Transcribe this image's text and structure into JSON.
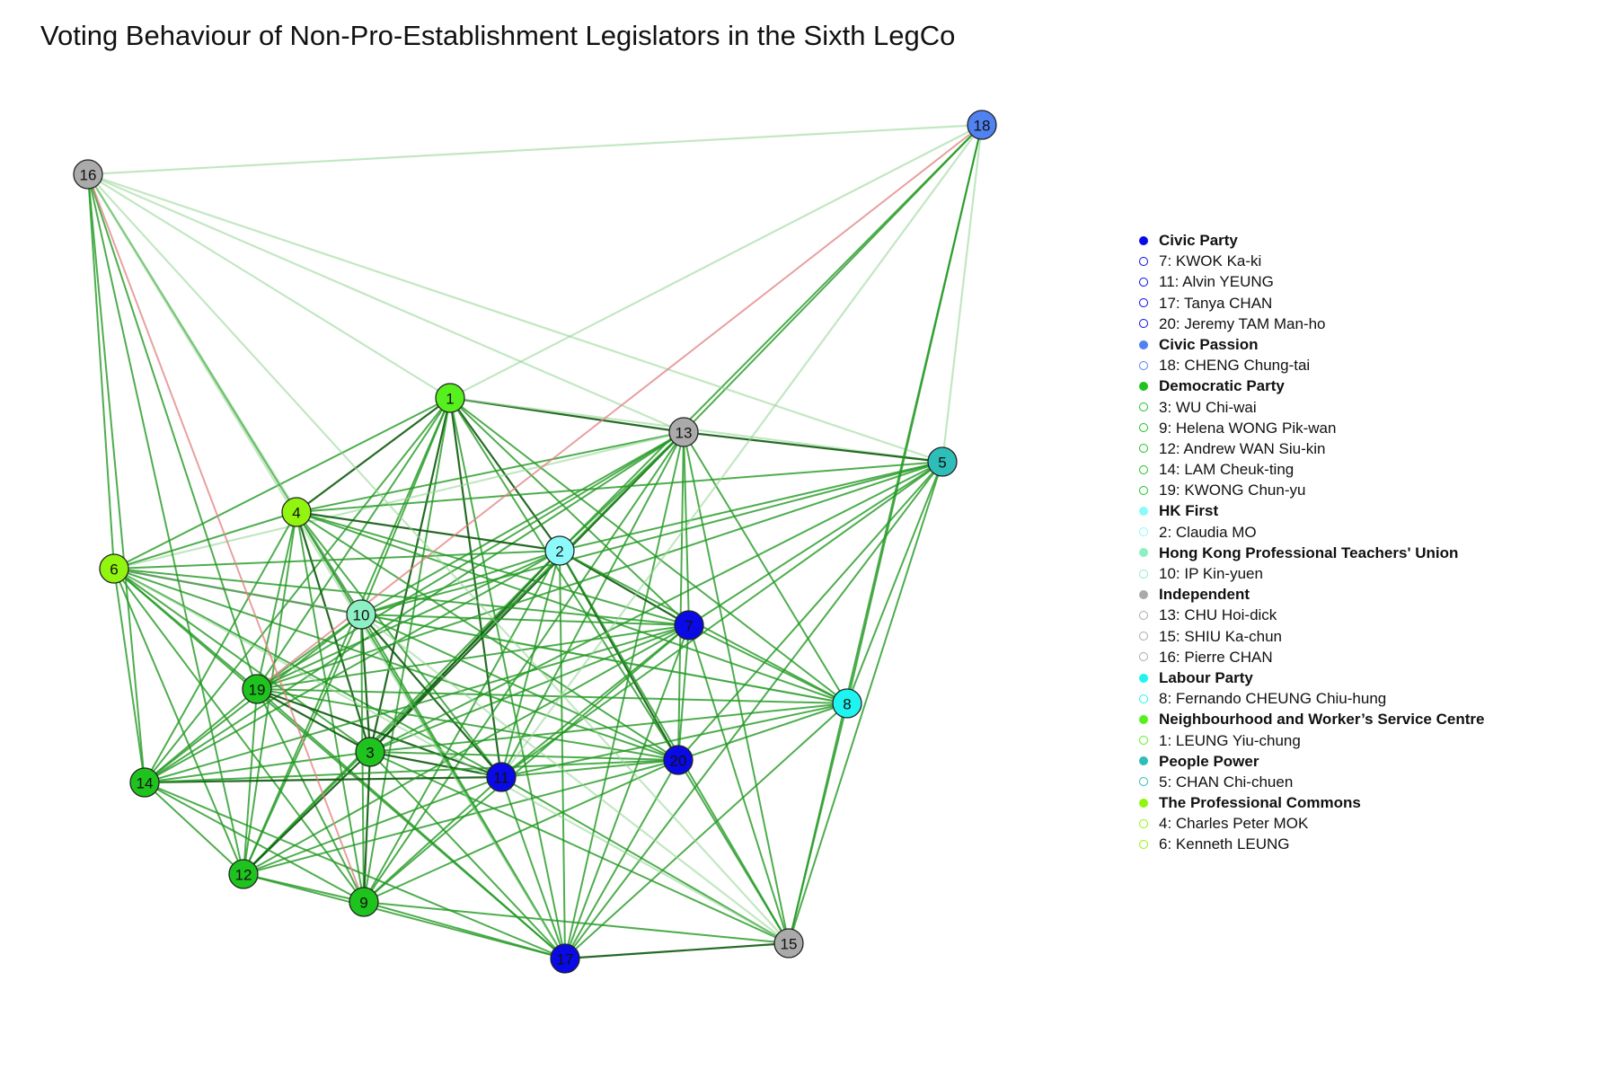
{
  "title": "Voting Behaviour of Non-Pro-Establishment Legislators in the Sixth LegCo",
  "parties": [
    {
      "name": "Civic Party",
      "color": "#0a0ae6",
      "members": [
        "7: KWOK Ka-ki",
        "11: Alvin YEUNG",
        "17: Tanya CHAN",
        "20: Jeremy TAM Man-ho"
      ]
    },
    {
      "name": "Civic Passion",
      "color": "#5082f0",
      "members": [
        "18: CHENG Chung-tai"
      ]
    },
    {
      "name": "Democratic Party",
      "color": "#1ec31e",
      "members": [
        "3: WU Chi-wai",
        "9: Helena WONG Pik-wan",
        "12: Andrew WAN Siu-kin",
        "14: LAM Cheuk-ting",
        "19: KWONG Chun-yu"
      ]
    },
    {
      "name": "HK First",
      "color": "#8cfafa",
      "members": [
        "2: Claudia MO"
      ]
    },
    {
      "name": "Hong Kong Professional Teachers' Union",
      "color": "#8cf0c3",
      "members": [
        "10: IP Kin-yuen"
      ]
    },
    {
      "name": "Independent",
      "color": "#aaaaaa",
      "members": [
        "13: CHU Hoi-dick",
        "15: SHIU Ka-chun",
        "16: Pierre CHAN"
      ]
    },
    {
      "name": "Labour Party",
      "color": "#1ef5f0",
      "members": [
        "8: Fernando CHEUNG Chiu-hung"
      ]
    },
    {
      "name": "Neighbourhood and Worker’s Service Centre",
      "color": "#55f01e",
      "members": [
        "1: LEUNG Yiu-chung"
      ]
    },
    {
      "name": "People Power",
      "color": "#2ebdb8",
      "members": [
        "5: CHAN Chi-chuen"
      ]
    },
    {
      "name": "The Professional Commons",
      "color": "#91f50f",
      "members": [
        "4: Charles Peter MOK",
        "6: Kenneth LEUNG"
      ]
    }
  ],
  "nodes": [
    {
      "id": "1",
      "party": "Neighbourhood and Worker’s Service Centre",
      "color": "#55f01e"
    },
    {
      "id": "2",
      "party": "HK First",
      "color": "#8cfafa"
    },
    {
      "id": "3",
      "party": "Democratic Party",
      "color": "#1ec31e"
    },
    {
      "id": "4",
      "party": "The Professional Commons",
      "color": "#91f50f"
    },
    {
      "id": "5",
      "party": "People Power",
      "color": "#2ebdb8"
    },
    {
      "id": "6",
      "party": "The Professional Commons",
      "color": "#91f50f"
    },
    {
      "id": "7",
      "party": "Civic Party",
      "color": "#0a0ae6"
    },
    {
      "id": "8",
      "party": "Labour Party",
      "color": "#1ef5f0"
    },
    {
      "id": "9",
      "party": "Democratic Party",
      "color": "#1ec31e"
    },
    {
      "id": "10",
      "party": "Hong Kong Professional Teachers' Union",
      "color": "#8cf0c3"
    },
    {
      "id": "11",
      "party": "Civic Party",
      "color": "#0a0ae6"
    },
    {
      "id": "12",
      "party": "Democratic Party",
      "color": "#1ec31e"
    },
    {
      "id": "13",
      "party": "Independent",
      "color": "#aaaaaa"
    },
    {
      "id": "14",
      "party": "Democratic Party",
      "color": "#1ec31e"
    },
    {
      "id": "15",
      "party": "Independent",
      "color": "#aaaaaa"
    },
    {
      "id": "16",
      "party": "Independent",
      "color": "#aaaaaa"
    },
    {
      "id": "17",
      "party": "Civic Party",
      "color": "#0a0ae6"
    },
    {
      "id": "18",
      "party": "Civic Passion",
      "color": "#5082f0"
    },
    {
      "id": "19",
      "party": "Democratic Party",
      "color": "#1ec31e"
    },
    {
      "id": "20",
      "party": "Civic Party",
      "color": "#0a0ae6"
    }
  ],
  "edge_colors": {
    "agree_strong": "#0e5a0e",
    "agree": "#229922",
    "agree_weak": "#8fd48f",
    "disagree": "#e08080"
  },
  "edges": [
    [
      "1",
      "13",
      1
    ],
    [
      "1",
      "4",
      1
    ],
    [
      "1",
      "10",
      2
    ],
    [
      "1",
      "3",
      1
    ],
    [
      "1",
      "11",
      1
    ],
    [
      "1",
      "2",
      1
    ],
    [
      "1",
      "7",
      2
    ],
    [
      "1",
      "19",
      2
    ],
    [
      "1",
      "9",
      2
    ],
    [
      "1",
      "17",
      2
    ],
    [
      "1",
      "20",
      2
    ],
    [
      "1",
      "6",
      2
    ],
    [
      "1",
      "14",
      2
    ],
    [
      "1",
      "12",
      2
    ],
    [
      "1",
      "8",
      2
    ],
    [
      "1",
      "18",
      3
    ],
    [
      "1",
      "16",
      3
    ],
    [
      "1",
      "5",
      3
    ],
    [
      "13",
      "5",
      1
    ],
    [
      "13",
      "2",
      2
    ],
    [
      "13",
      "3",
      1
    ],
    [
      "13",
      "11",
      2
    ],
    [
      "13",
      "7",
      2
    ],
    [
      "13",
      "20",
      2
    ],
    [
      "13",
      "17",
      2
    ],
    [
      "13",
      "9",
      2
    ],
    [
      "13",
      "12",
      2
    ],
    [
      "13",
      "14",
      2
    ],
    [
      "13",
      "19",
      2
    ],
    [
      "13",
      "10",
      2
    ],
    [
      "13",
      "4",
      2
    ],
    [
      "13",
      "8",
      2
    ],
    [
      "13",
      "15",
      2
    ],
    [
      "13",
      "18",
      2
    ],
    [
      "13",
      "6",
      3
    ],
    [
      "13",
      "16",
      3
    ],
    [
      "4",
      "6",
      2
    ],
    [
      "4",
      "2",
      1
    ],
    [
      "4",
      "10",
      1
    ],
    [
      "4",
      "3",
      1
    ],
    [
      "4",
      "19",
      2
    ],
    [
      "4",
      "12",
      2
    ],
    [
      "4",
      "9",
      2
    ],
    [
      "4",
      "11",
      2
    ],
    [
      "4",
      "7",
      2
    ],
    [
      "4",
      "14",
      2
    ],
    [
      "4",
      "17",
      2
    ],
    [
      "4",
      "20",
      2
    ],
    [
      "4",
      "5",
      2
    ],
    [
      "4",
      "8",
      2
    ],
    [
      "4",
      "16",
      2
    ],
    [
      "6",
      "10",
      1
    ],
    [
      "6",
      "19",
      2
    ],
    [
      "6",
      "14",
      2
    ],
    [
      "6",
      "12",
      2
    ],
    [
      "6",
      "3",
      2
    ],
    [
      "6",
      "9",
      2
    ],
    [
      "6",
      "11",
      2
    ],
    [
      "6",
      "7",
      2
    ],
    [
      "6",
      "2",
      2
    ],
    [
      "6",
      "20",
      2
    ],
    [
      "6",
      "17",
      2
    ],
    [
      "6",
      "16",
      2
    ],
    [
      "6",
      "8",
      3
    ],
    [
      "2",
      "7",
      1
    ],
    [
      "2",
      "20",
      1
    ],
    [
      "2",
      "3",
      1
    ],
    [
      "2",
      "11",
      2
    ],
    [
      "2",
      "10",
      2
    ],
    [
      "2",
      "19",
      2
    ],
    [
      "2",
      "14",
      2
    ],
    [
      "2",
      "12",
      2
    ],
    [
      "2",
      "9",
      2
    ],
    [
      "2",
      "17",
      2
    ],
    [
      "2",
      "5",
      2
    ],
    [
      "2",
      "8",
      2
    ],
    [
      "2",
      "18",
      2
    ],
    [
      "2",
      "15",
      2
    ],
    [
      "10",
      "11",
      1
    ],
    [
      "10",
      "3",
      1
    ],
    [
      "10",
      "19",
      2
    ],
    [
      "10",
      "14",
      2
    ],
    [
      "10",
      "12",
      2
    ],
    [
      "10",
      "9",
      2
    ],
    [
      "10",
      "7",
      2
    ],
    [
      "10",
      "20",
      2
    ],
    [
      "10",
      "17",
      2
    ],
    [
      "10",
      "8",
      2
    ],
    [
      "10",
      "5",
      2
    ],
    [
      "10",
      "16",
      3
    ],
    [
      "19",
      "3",
      1
    ],
    [
      "19",
      "11",
      1
    ],
    [
      "19",
      "14",
      2
    ],
    [
      "19",
      "12",
      2
    ],
    [
      "19",
      "9",
      2
    ],
    [
      "19",
      "7",
      2
    ],
    [
      "19",
      "20",
      2
    ],
    [
      "19",
      "17",
      2
    ],
    [
      "19",
      "8",
      2
    ],
    [
      "19",
      "5",
      2
    ],
    [
      "19",
      "16",
      2
    ],
    [
      "3",
      "11",
      1
    ],
    [
      "3",
      "12",
      1
    ],
    [
      "3",
      "9",
      1
    ],
    [
      "3",
      "14",
      2
    ],
    [
      "3",
      "7",
      2
    ],
    [
      "3",
      "20",
      2
    ],
    [
      "3",
      "17",
      2
    ],
    [
      "3",
      "8",
      2
    ],
    [
      "3",
      "5",
      2
    ],
    [
      "3",
      "15",
      2
    ],
    [
      "11",
      "14",
      1
    ],
    [
      "11",
      "12",
      2
    ],
    [
      "11",
      "9",
      2
    ],
    [
      "11",
      "17",
      2
    ],
    [
      "11",
      "20",
      2
    ],
    [
      "11",
      "7",
      2
    ],
    [
      "11",
      "8",
      2
    ],
    [
      "11",
      "5",
      2
    ],
    [
      "11",
      "15",
      2
    ],
    [
      "14",
      "12",
      2
    ],
    [
      "14",
      "9",
      2
    ],
    [
      "14",
      "7",
      2
    ],
    [
      "14",
      "20",
      2
    ],
    [
      "14",
      "17",
      2
    ],
    [
      "14",
      "16",
      2
    ],
    [
      "12",
      "9",
      2
    ],
    [
      "12",
      "17",
      2
    ],
    [
      "12",
      "7",
      2
    ],
    [
      "12",
      "20",
      2
    ],
    [
      "12",
      "16",
      2
    ],
    [
      "9",
      "17",
      2
    ],
    [
      "9",
      "20",
      2
    ],
    [
      "9",
      "7",
      2
    ],
    [
      "9",
      "15",
      2
    ],
    [
      "17",
      "15",
      1
    ],
    [
      "17",
      "7",
      2
    ],
    [
      "17",
      "20",
      2
    ],
    [
      "17",
      "8",
      2
    ],
    [
      "17",
      "5",
      2
    ],
    [
      "7",
      "20",
      2
    ],
    [
      "7",
      "8",
      2
    ],
    [
      "7",
      "5",
      2
    ],
    [
      "7",
      "15",
      2
    ],
    [
      "20",
      "8",
      2
    ],
    [
      "20",
      "5",
      2
    ],
    [
      "20",
      "15",
      2
    ],
    [
      "8",
      "5",
      2
    ],
    [
      "8",
      "15",
      2
    ],
    [
      "8",
      "18",
      2
    ],
    [
      "5",
      "15",
      2
    ],
    [
      "5",
      "18",
      3
    ],
    [
      "5",
      "16",
      3
    ],
    [
      "15",
      "18",
      2
    ],
    [
      "15",
      "10",
      3
    ],
    [
      "15",
      "6",
      3
    ],
    [
      "18",
      "16",
      3
    ],
    [
      "18",
      "19",
      4
    ],
    [
      "18",
      "11",
      3
    ],
    [
      "16",
      "9",
      4
    ],
    [
      "16",
      "17",
      3
    ],
    [
      "16",
      "15",
      3
    ]
  ],
  "node_positions": {}
}
